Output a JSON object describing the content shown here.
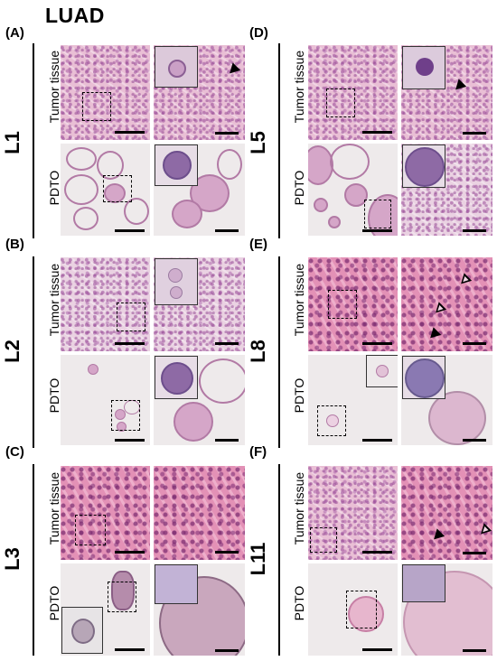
{
  "figure": {
    "title": "LUAD",
    "row_labels": {
      "tissue": "Tumor tissue",
      "pdto": "PDTO"
    },
    "panels": [
      {
        "letter": "(A)",
        "case": "L1"
      },
      {
        "letter": "(B)",
        "case": "L2"
      },
      {
        "letter": "(C)",
        "case": "L3"
      },
      {
        "letter": "(D)",
        "case": "L5"
      },
      {
        "letter": "(E)",
        "case": "L8"
      },
      {
        "letter": "(F)",
        "case": "L11"
      }
    ]
  }
}
